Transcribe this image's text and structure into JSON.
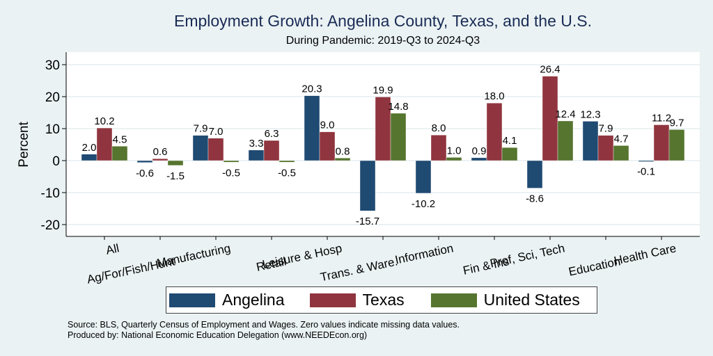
{
  "chart_data": {
    "type": "bar",
    "title": "Employment Growth: Angelina County, Texas, and the U.S.",
    "subtitle": "During Pandemic: 2019-Q3 to 2024-Q3",
    "xlabel": "",
    "ylabel": "Percent",
    "ylim": [
      -24,
      34
    ],
    "yticks": [
      30,
      20,
      10,
      0,
      -10,
      -20
    ],
    "grid": true,
    "legend_position": "bottom",
    "categories": [
      "All",
      "Ag/For/Fish/Hunt",
      "Manufacturing",
      "Retail",
      "Leisure & Hosp",
      "Trans. & Ware.",
      "Information",
      "Fin & Ins",
      "Prof, Sci, Tech",
      "Education",
      "Health Care"
    ],
    "series": [
      {
        "name": "Angelina",
        "color": "#1f4a72",
        "values": [
          2.0,
          -0.6,
          7.9,
          3.3,
          20.3,
          -15.7,
          -10.2,
          0.9,
          -8.6,
          12.3,
          -0.1
        ]
      },
      {
        "name": "Texas",
        "color": "#90353f",
        "values": [
          10.2,
          0.6,
          7.0,
          6.3,
          9.0,
          19.9,
          8.0,
          18.0,
          26.4,
          7.9,
          11.2
        ]
      },
      {
        "name": "United States",
        "color": "#56752f",
        "values": [
          4.5,
          -1.5,
          -0.5,
          -0.5,
          0.8,
          14.8,
          1.0,
          4.1,
          12.4,
          4.7,
          9.7
        ]
      }
    ]
  },
  "notes": {
    "source": "Source: BLS, Quarterly Census of Employment and Wages. Zero values indicate missing data values.",
    "produced": "Produced by: National Economic Education Delegation (www.NEEDEcon.org)"
  }
}
